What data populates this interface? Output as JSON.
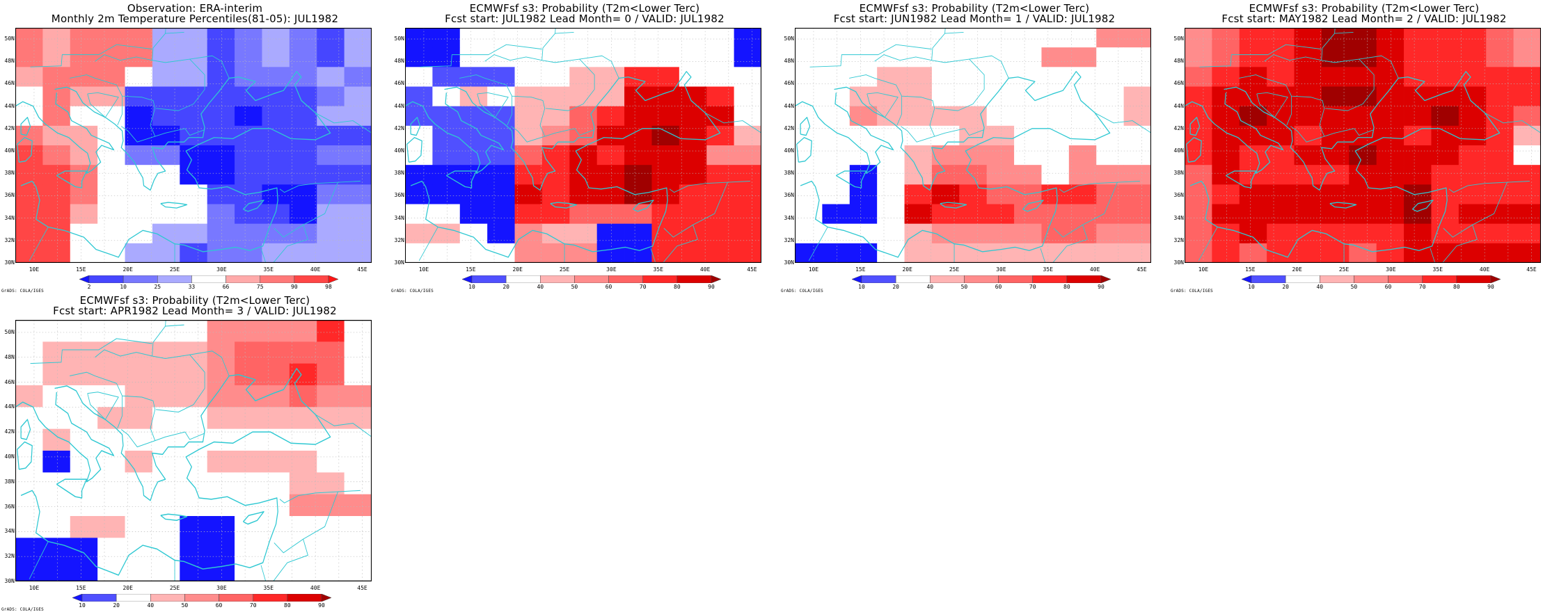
{
  "lat_labels": [
    "50N",
    "48N",
    "46N",
    "44N",
    "42N",
    "40N",
    "38N",
    "36N",
    "34N",
    "32N",
    "30N"
  ],
  "lon_labels": [
    "10E",
    "15E",
    "20E",
    "25E",
    "30E",
    "35E",
    "40E",
    "45E"
  ],
  "credit": "GrADS: COLA/IGES",
  "coast_color": "#2ec8d2",
  "grid": {
    "lon_range": [
      8,
      46
    ],
    "lat_range": [
      30,
      51
    ],
    "cell_deg": 2.5
  },
  "scales": {
    "pct": {
      "labels": [
        "2",
        "10",
        "25",
        "33",
        "66",
        "75",
        "90",
        "98"
      ],
      "colors": [
        "#1414ff",
        "#4646ff",
        "#7878ff",
        "#aaaaff",
        "#ffffff",
        "#ffaaaa",
        "#ff7878",
        "#ff4646",
        "#ff1414"
      ]
    },
    "prob": {
      "labels": [
        "10",
        "20",
        "40",
        "50",
        "60",
        "70",
        "80",
        "90"
      ],
      "colors": [
        "#1414ff",
        "#5050ff",
        "#ffffff",
        "#ffb4b4",
        "#ff8c8c",
        "#ff6464",
        "#ff2828",
        "#dc0000",
        "#a00000"
      ]
    }
  },
  "panels": [
    {
      "title1": "Observation: ERA-interim",
      "title2": "Monthly 2m Temperature Percentiles(81-05): JUL1982",
      "scale": "pct",
      "chart_data": {
        "type": "heatmap",
        "variable": "2m temperature percentile class",
        "cells": [
          "6566633123213",
          "6566633123213",
          "5666433122232",
          "4655111111123",
          "4644011101133",
          "6554001111111",
          "7654220011122",
          "7764440011111",
          "7764444110022",
          "7754444211033",
          "7744433222233",
          "7744331223333"
        ]
      }
    },
    {
      "title1": "ECMWFsf s3: Probability (T2m<Lower Terc)",
      "title2": "Fcst start: JUL1982  Lead Month= 0 / VALID: JUL1982",
      "scale": "prob",
      "chart_data": {
        "type": "heatmap",
        "variable": "probability (%) T2m < lower tercile",
        "cells": [
          "0022222222220",
          "0022222222220",
          "2111223366222",
          "1232333377762",
          "1111335677772",
          "2111345778763",
          "2111567677744",
          "0000667787766",
          "0000767787666",
          "2200665556666",
          "3320433006666",
          "2222444006666"
        ]
      }
    },
    {
      "title1": "ECMWFsf s3: Probability (T2m<Lower Terc)",
      "title2": "Fcst start: JUN1982  Lead Month= 1 / VALID: JUL1982",
      "scale": "prob",
      "chart_data": {
        "type": "heatmap",
        "variable": "probability (%) T2m < lower tercile",
        "cells": [
          "2222222222244",
          "2222222224422",
          "2223322222222",
          "2233322222223",
          "2243333222223",
          "2222223322222",
          "2222344422422",
          "2202355442444",
          "2202676556655",
          "2002766655555",
          "2222344445544",
          "0002333333333"
        ]
      }
    },
    {
      "title1": "ECMWFsf s3: Probability (T2m<Lower Terc)",
      "title2": "Fcst start: MAY1982  Lead Month= 2 / VALID: JUL1982",
      "scale": "prob",
      "chart_data": {
        "type": "heatmap",
        "variable": "probability (%) T2m < lower tercile",
        "cells": [
          "4566788766654",
          "4566788766654",
          "5676777766666",
          "6777788777766",
          "6787777778765",
          "6777677767763",
          "6766778777662",
          "5766667776666",
          "5677777786666",
          "5777777786777",
          "5676666676666",
          "5656665677777"
        ]
      }
    },
    {
      "title1": "ECMWFsf s3: Probability (T2m<Lower Terc)",
      "title2": "Fcst start: APR1982  Lead Month= 3 / VALID: JUL1982",
      "scale": "prob",
      "chart_data": {
        "type": "heatmap",
        "variable": "probability (%) T2m < lower tercile",
        "cells": [
          "2222222444462",
          "2333333455552",
          "2333333455652",
          "3222333444544",
          "2223322333333",
          "2322222222222",
          "2022322333322",
          "2222222222332",
          "2222222222444",
          "2233220022222",
          "0002220022222",
          "0002220022222"
        ]
      }
    }
  ]
}
